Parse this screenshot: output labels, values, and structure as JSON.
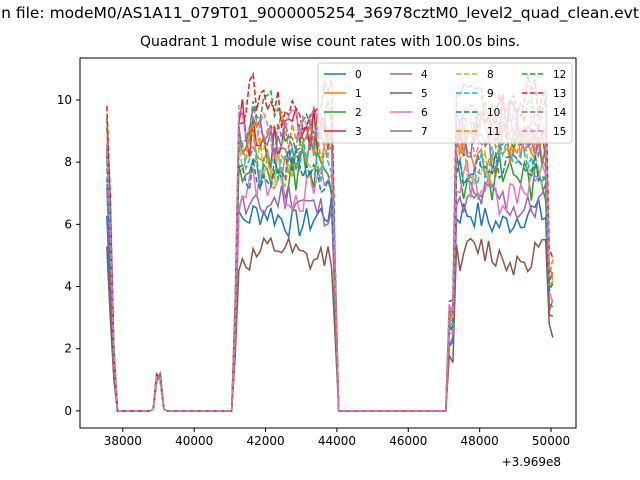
{
  "chart_data": {
    "type": "line",
    "suptitle": "n file: modeM0/AS1A11_079T01_9000005254_36978cztM0_level2_quad_clean.evt",
    "title": "Quadrant 1 module wise count rates with 100.0s bins.",
    "xlabel": "",
    "ylabel": "",
    "x_offset_label": "+3.969e8",
    "xlim": [
      36800,
      50700
    ],
    "ylim": [
      -0.55,
      11.35
    ],
    "xticks": [
      38000,
      40000,
      42000,
      44000,
      46000,
      48000,
      50000
    ],
    "xtick_labels": [
      "38000",
      "40000",
      "42000",
      "44000",
      "46000",
      "48000",
      "50000"
    ],
    "yticks": [
      0,
      2,
      4,
      6,
      8,
      10
    ],
    "ytick_labels": [
      "0",
      "2",
      "4",
      "6",
      "8",
      "10"
    ],
    "grid": false,
    "legend_placement": "top-right",
    "segments": [
      {
        "start": 37550,
        "end": 37750,
        "kind": "spike"
      },
      {
        "start": 37850,
        "end": 38750,
        "kind": "zero"
      },
      {
        "start": 38850,
        "end": 39150,
        "kind": "bump"
      },
      {
        "start": 39250,
        "end": 41050,
        "kind": "zero"
      },
      {
        "start": 41150,
        "end": 43950,
        "kind": "active"
      },
      {
        "start": 44050,
        "end": 47050,
        "kind": "zero"
      },
      {
        "start": 47150,
        "end": 50050,
        "kind": "active"
      }
    ],
    "series": [
      {
        "name": "0",
        "dash": "solid",
        "color": "#1f77b4",
        "level": 6.2,
        "amp": 0.35
      },
      {
        "name": "1",
        "dash": "solid",
        "color": "#ff7f0e",
        "level": 8.3,
        "amp": 0.5
      },
      {
        "name": "2",
        "dash": "solid",
        "color": "#2ca02c",
        "level": 7.5,
        "amp": 0.5
      },
      {
        "name": "3",
        "dash": "solid",
        "color": "#d62728",
        "level": 9.0,
        "amp": 0.6
      },
      {
        "name": "4",
        "dash": "solid",
        "color": "#9467bd",
        "level": 6.7,
        "amp": 0.4
      },
      {
        "name": "5",
        "dash": "solid",
        "color": "#8c564b",
        "level": 5.0,
        "amp": 0.35
      },
      {
        "name": "6",
        "dash": "solid",
        "color": "#e377c2",
        "level": 7.2,
        "amp": 0.45
      },
      {
        "name": "7",
        "dash": "solid",
        "color": "#7f7f7f",
        "level": 8.6,
        "amp": 0.5
      },
      {
        "name": "8",
        "dash": "dashed",
        "color": "#bcbd22",
        "level": 8.1,
        "amp": 0.5
      },
      {
        "name": "9",
        "dash": "dashed",
        "color": "#17becf",
        "level": 8.0,
        "amp": 0.45
      },
      {
        "name": "10",
        "dash": "dashed",
        "color": "#1f77b4",
        "level": 7.8,
        "amp": 0.45
      },
      {
        "name": "11",
        "dash": "dashed",
        "color": "#ff7f0e",
        "level": 8.8,
        "amp": 0.5
      },
      {
        "name": "12",
        "dash": "dashed",
        "color": "#2ca02c",
        "level": 9.3,
        "amp": 0.5
      },
      {
        "name": "13",
        "dash": "dashed",
        "color": "#d62728",
        "level": 9.9,
        "amp": 0.5
      },
      {
        "name": "14",
        "dash": "dashed",
        "color": "#9467bd",
        "level": 8.9,
        "amp": 0.45
      },
      {
        "name": "15",
        "dash": "dashed",
        "color": "#e377c2",
        "level": 9.1,
        "amp": 0.5
      }
    ]
  }
}
